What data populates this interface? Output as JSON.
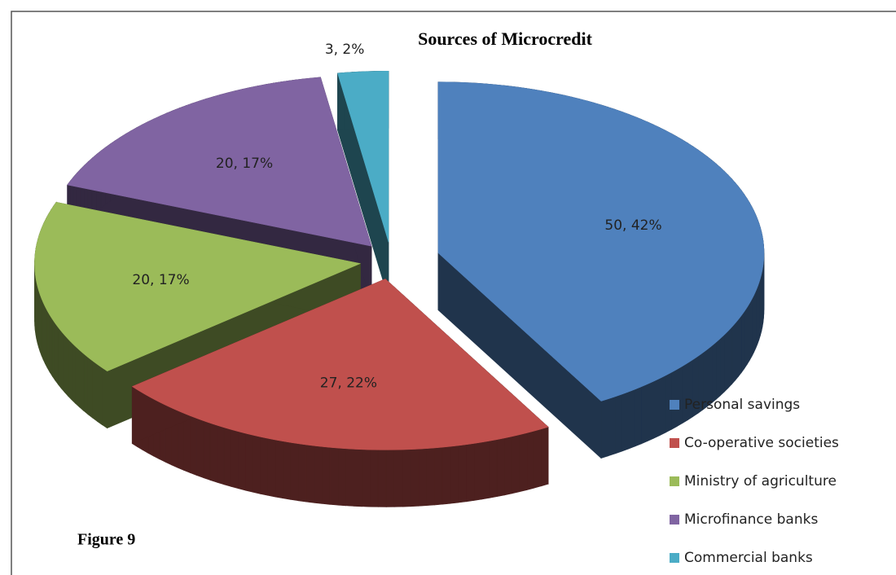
{
  "chart_data": {
    "type": "pie",
    "title": "Sources of Microcredit",
    "categories": [
      "Personal savings",
      "Co-operative societies",
      "Ministry of agriculture",
      "Microfinance banks",
      "Commercial banks"
    ],
    "values": [
      50,
      27,
      20,
      20,
      3
    ],
    "value_labels": [
      "50, 42%",
      "27, 22%",
      "20, 17%",
      "20, 17%",
      "3, 2%"
    ],
    "colors": [
      "#4f81bd",
      "#c0504d",
      "#9bbb59",
      "#8064a2",
      "#4bacc6"
    ],
    "legend": "lower right",
    "figure_label": "Figure 9"
  }
}
